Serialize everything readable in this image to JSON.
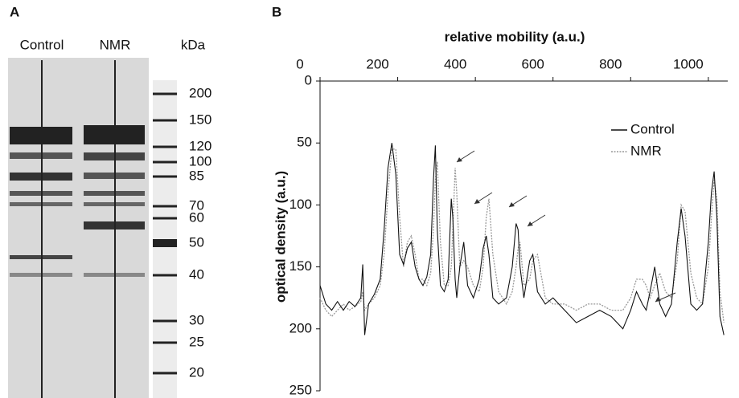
{
  "panel_a": {
    "letter": "A",
    "lanes": [
      "Control",
      "NMR"
    ],
    "unit": "kDa",
    "markers": [
      200,
      150,
      120,
      100,
      85,
      70,
      60,
      50,
      40,
      30,
      25,
      20
    ]
  },
  "chart_data": {
    "type": "line",
    "letter": "B",
    "x_label": "relative mobility (a.u.)",
    "y_label": "optical density (a.u.)",
    "xlim": [
      0,
      1050
    ],
    "xticks": [
      0,
      200,
      400,
      600,
      800,
      1000
    ],
    "ylim": [
      0,
      250
    ],
    "yticks": [
      0,
      50,
      100,
      150,
      200,
      250
    ],
    "y_inverted": true,
    "legend": "upper right",
    "x": [
      0,
      15,
      30,
      45,
      60,
      75,
      90,
      105,
      110,
      115,
      125,
      140,
      155,
      165,
      175,
      185,
      195,
      205,
      215,
      225,
      235,
      245,
      255,
      265,
      275,
      285,
      292,
      297,
      302,
      310,
      320,
      330,
      338,
      342,
      348,
      352,
      360,
      370,
      380,
      395,
      410,
      420,
      428,
      435,
      445,
      460,
      480,
      495,
      505,
      510,
      515,
      525,
      540,
      548,
      560,
      580,
      600,
      630,
      660,
      690,
      720,
      750,
      780,
      800,
      815,
      830,
      840,
      850,
      862,
      875,
      890,
      905,
      920,
      930,
      940,
      955,
      970,
      985,
      1000,
      1008,
      1015,
      1022,
      1030,
      1040
    ],
    "series": [
      {
        "name": "Control",
        "color": "#111111",
        "dash": false,
        "values": [
          165,
          180,
          185,
          178,
          185,
          178,
          182,
          175,
          148,
          205,
          180,
          172,
          160,
          120,
          70,
          50,
          75,
          140,
          148,
          135,
          130,
          150,
          160,
          165,
          158,
          140,
          80,
          52,
          120,
          165,
          170,
          160,
          95,
          110,
          160,
          175,
          150,
          130,
          165,
          175,
          160,
          135,
          125,
          140,
          175,
          180,
          175,
          150,
          115,
          120,
          150,
          175,
          145,
          140,
          170,
          180,
          175,
          185,
          195,
          190,
          185,
          190,
          200,
          185,
          170,
          180,
          185,
          170,
          150,
          180,
          190,
          180,
          130,
          103,
          125,
          180,
          185,
          180,
          130,
          90,
          73,
          110,
          190,
          205
        ]
      },
      {
        "name": "NMR",
        "color": "#999999",
        "dash": true,
        "values": [
          175,
          185,
          190,
          185,
          180,
          185,
          182,
          178,
          170,
          185,
          180,
          175,
          165,
          140,
          90,
          55,
          55,
          110,
          150,
          130,
          125,
          140,
          160,
          160,
          165,
          155,
          120,
          80,
          65,
          130,
          165,
          165,
          150,
          120,
          70,
          90,
          150,
          145,
          150,
          165,
          170,
          150,
          110,
          95,
          140,
          170,
          180,
          170,
          150,
          135,
          130,
          165,
          160,
          145,
          140,
          175,
          180,
          180,
          185,
          180,
          180,
          185,
          185,
          175,
          160,
          160,
          165,
          175,
          165,
          155,
          170,
          175,
          145,
          100,
          105,
          155,
          175,
          180,
          150,
          110,
          80,
          95,
          170,
          195
        ]
      }
    ]
  }
}
